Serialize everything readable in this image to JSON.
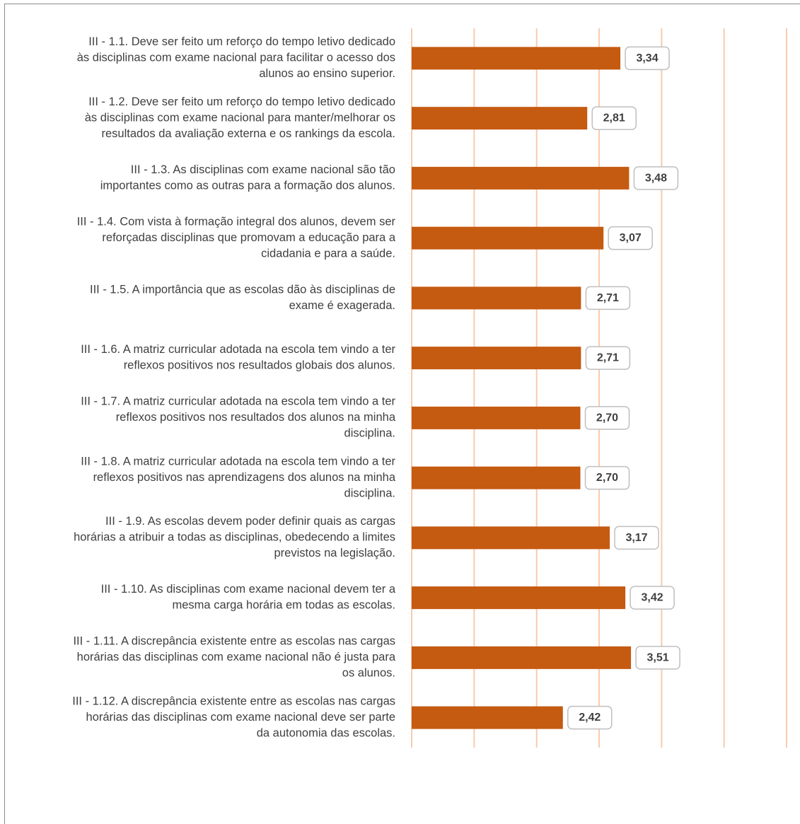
{
  "chart_data": {
    "type": "bar",
    "orientation": "horizontal",
    "categories": [
      "III - 1.1. Deve ser feito um reforço do tempo letivo dedicado às disciplinas com exame nacional para facilitar o acesso dos alunos ao ensino superior.",
      "III - 1.2. Deve ser feito um reforço do tempo letivo dedicado às disciplinas com exame nacional para manter/melhorar os resultados da avaliação externa e os rankings da escola.",
      "III - 1.3. As disciplinas com exame nacional são tão importantes como as outras para a formação dos alunos.",
      "III - 1.4. Com vista à formação integral dos alunos, devem ser reforçadas disciplinas que promovam a educação para a cidadania e para a saúde.",
      "III - 1.5. A importância que as escolas dão às disciplinas de exame é exagerada.",
      "III - 1.6. A matriz curricular adotada na escola tem vindo a ter reflexos positivos nos resultados globais dos alunos.",
      "III - 1.7. A matriz curricular adotada na escola tem vindo a ter reflexos positivos nos resultados dos alunos na minha disciplina.",
      "III - 1.8. A matriz curricular adotada na escola tem vindo a ter reflexos positivos nas aprendizagens dos alunos na minha disciplina.",
      "III - 1.9. As escolas devem poder definir quais as cargas horárias a atribuir a todas as disciplinas, obedecendo a limites previstos na legislação.",
      "III - 1.10. As disciplinas com exame nacional devem ter a mesma carga horária em todas as escolas.",
      "III - 1.11. A discrepância existente entre as escolas nas cargas horárias das disciplinas com exame nacional não é justa para os alunos.",
      "III - 1.12. A discrepância existente entre as escolas nas cargas horárias das disciplinas com exame nacional deve ser parte da autonomia das escolas."
    ],
    "category_lines": [
      [
        "III - 1.1. Deve ser feito um reforço do tempo letivo dedicado",
        "às disciplinas com exame nacional para facilitar o acesso dos",
        "alunos ao ensino superior."
      ],
      [
        "III - 1.2. Deve ser feito um reforço do tempo letivo dedicado",
        "às disciplinas com exame nacional para manter/melhorar os",
        "resultados da avaliação externa e os rankings da escola."
      ],
      [
        "III - 1.3. As disciplinas com exame nacional são tão",
        "importantes como as outras para a formação dos alunos."
      ],
      [
        "III - 1.4. Com vista à formação integral dos alunos, devem ser",
        "reforçadas disciplinas que promovam a educação para a",
        "cidadania e para a saúde."
      ],
      [
        "III - 1.5. A importância que as escolas dão às disciplinas de",
        "exame é exagerada."
      ],
      [
        "III - 1.6. A matriz curricular adotada na escola tem vindo a ter",
        "reflexos positivos nos resultados globais dos alunos."
      ],
      [
        "III - 1.7. A matriz curricular adotada na escola tem vindo a ter",
        "reflexos positivos nos resultados dos alunos na minha",
        "disciplina."
      ],
      [
        "III - 1.8. A matriz curricular adotada na escola tem vindo a ter",
        "reflexos positivos nas aprendizagens dos alunos na minha",
        "disciplina."
      ],
      [
        "III - 1.9. As escolas devem poder definir quais as cargas",
        "horárias a atribuir a todas as disciplinas, obedecendo a limites",
        "previstos na legislação."
      ],
      [
        "III - 1.10. As disciplinas com exame nacional devem ter a",
        "mesma carga horária em todas as escolas."
      ],
      [
        "III - 1.11. A discrepância existente entre as escolas nas cargas",
        "horárias das disciplinas com exame nacional não é justa para",
        "os alunos."
      ],
      [
        "III - 1.12. A discrepância existente entre as escolas nas cargas",
        "horárias das disciplinas com exame nacional deve ser parte",
        "da autonomia das escolas."
      ]
    ],
    "values": [
      3.34,
      2.81,
      3.48,
      3.07,
      2.71,
      2.71,
      2.7,
      2.7,
      3.17,
      3.42,
      3.51,
      2.42
    ],
    "value_labels": [
      "3,34",
      "2,81",
      "3,48",
      "3,07",
      "2,71",
      "2,71",
      "2,70",
      "2,70",
      "3,17",
      "3,42",
      "3,51",
      "2,42"
    ],
    "xlim": [
      0,
      6
    ],
    "grid": true,
    "tick_labels_visible": false,
    "title": "",
    "xlabel": "",
    "ylabel": "",
    "legend": "none"
  },
  "colors": {
    "bar": "#c55a11",
    "grid": "#f8cbad",
    "label_text": "#404040",
    "value_box_border": "#bfbfbf",
    "frame": "#8c8c8c"
  }
}
